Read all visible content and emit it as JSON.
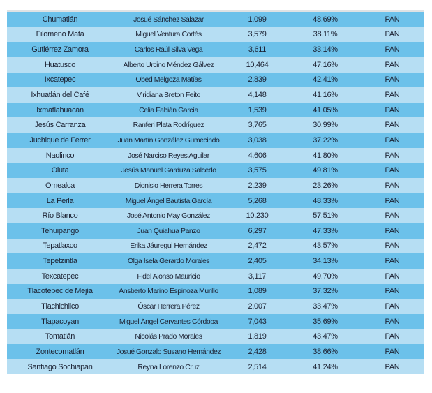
{
  "rows": [
    {
      "municipio": "Chumatlán",
      "candidato": "Josué Sánchez Salazar",
      "votos": "1,099",
      "porcentaje": "48.69%",
      "partido": "PAN"
    },
    {
      "municipio": "Filomeno Mata",
      "candidato": "Miguel Ventura Cortés",
      "votos": "3,579",
      "porcentaje": "38.11%",
      "partido": "PAN"
    },
    {
      "municipio": "Gutiérrez Zamora",
      "candidato": "Carlos Raúl Silva Vega",
      "votos": "3,611",
      "porcentaje": "33.14%",
      "partido": "PAN"
    },
    {
      "municipio": "Huatusco",
      "candidato": "Alberto Urcino Méndez Gálvez",
      "votos": "10,464",
      "porcentaje": "47.16%",
      "partido": "PAN"
    },
    {
      "municipio": "Ixcatepec",
      "candidato": "Obed Melgoza Matías",
      "votos": "2,839",
      "porcentaje": "42.41%",
      "partido": "PAN"
    },
    {
      "municipio": "Ixhuatlán del Café",
      "candidato": "Viridiana Breton Feito",
      "votos": "4,148",
      "porcentaje": "41.16%",
      "partido": "PAN"
    },
    {
      "municipio": "Ixmatlahuacán",
      "candidato": "Celia Fabián García",
      "votos": "1,539",
      "porcentaje": "41.05%",
      "partido": "PAN"
    },
    {
      "municipio": "Jesús Carranza",
      "candidato": "Ranferi Plata Rodríguez",
      "votos": "3,765",
      "porcentaje": "30.99%",
      "partido": "PAN"
    },
    {
      "municipio": "Juchique de Ferrer",
      "candidato": "Juan Martín González Gumecindo",
      "votos": "3,038",
      "porcentaje": "37.22%",
      "partido": "PAN"
    },
    {
      "municipio": "Naolinco",
      "candidato": "José Narciso Reyes Aguilar",
      "votos": "4,606",
      "porcentaje": "41.80%",
      "partido": "PAN"
    },
    {
      "municipio": "Oluta",
      "candidato": "Jesús Manuel Garduza Salcedo",
      "votos": "3,575",
      "porcentaje": "49.81%",
      "partido": "PAN"
    },
    {
      "municipio": "Omealca",
      "candidato": "Dionisio Herrera Torres",
      "votos": "2,239",
      "porcentaje": "23.26%",
      "partido": "PAN"
    },
    {
      "municipio": "La Perla",
      "candidato": "Miguel Ángel Bautista García",
      "votos": "5,268",
      "porcentaje": "48.33%",
      "partido": "PAN"
    },
    {
      "municipio": "Río Blanco",
      "candidato": "José Antonio May González",
      "votos": "10,230",
      "porcentaje": "57.51%",
      "partido": "PAN"
    },
    {
      "municipio": "Tehuipango",
      "candidato": "Juan Quiahua Panzo",
      "votos": "6,297",
      "porcentaje": "47.33%",
      "partido": "PAN"
    },
    {
      "municipio": "Tepatlaxco",
      "candidato": "Erika Jáuregui Hernández",
      "votos": "2,472",
      "porcentaje": "43.57%",
      "partido": "PAN"
    },
    {
      "municipio": "Tepetzintla",
      "candidato": "Olga Isela Gerardo Morales",
      "votos": "2,405",
      "porcentaje": "34.13%",
      "partido": "PAN"
    },
    {
      "municipio": "Texcatepec",
      "candidato": "Fidel Alonso Mauricio",
      "votos": "3,117",
      "porcentaje": "49.70%",
      "partido": "PAN"
    },
    {
      "municipio": "Tlacotepec de Mejía",
      "candidato": "Ansberto Marino Espinoza Murillo",
      "votos": "1,089",
      "porcentaje": "37.32%",
      "partido": "PAN"
    },
    {
      "municipio": "Tlachichilco",
      "candidato": "Óscar Herrera Pérez",
      "votos": "2,007",
      "porcentaje": "33.47%",
      "partido": "PAN"
    },
    {
      "municipio": "Tlapacoyan",
      "candidato": "Miguel Ángel Cervantes Córdoba",
      "votos": "7,043",
      "porcentaje": "35.69%",
      "partido": "PAN"
    },
    {
      "municipio": "Tomatlán",
      "candidato": "Nicolás Prado Morales",
      "votos": "1,819",
      "porcentaje": "43.47%",
      "partido": "PAN"
    },
    {
      "municipio": "Zontecomatlán",
      "candidato": "Josué Gonzalo Susano Hernández",
      "votos": "2,428",
      "porcentaje": "38.66%",
      "partido": "PAN"
    },
    {
      "municipio": "Santiago Sochiapan",
      "candidato": "Reyna Lorenzo Cruz",
      "votos": "2,514",
      "porcentaje": "41.24%",
      "partido": "PAN"
    }
  ],
  "colors": {
    "row_dark": "#6cc1ea",
    "row_light": "#b6def3",
    "text": "#1c2233"
  }
}
